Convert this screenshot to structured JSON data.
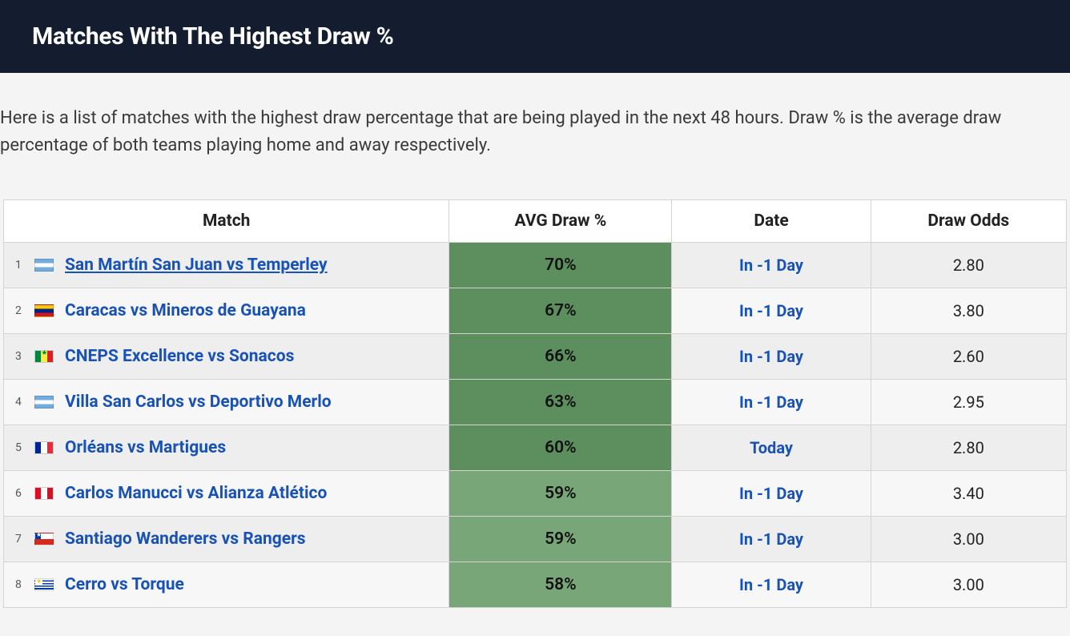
{
  "header": {
    "title": "Matches With The Highest Draw %"
  },
  "intro": "Here is a list of matches with the highest draw percentage that are being played in the next 48 hours. Draw % is the average draw percentage of both teams playing home and away respectively.",
  "table": {
    "columns": {
      "match": "Match",
      "avg_draw": "AVG Draw %",
      "date": "Date",
      "draw_odds": "Draw Odds"
    },
    "pct_color_strong": "#5d8e5d",
    "pct_color_mid": "#79a679",
    "pct_color_light": "#8db68d",
    "link_color": "#1852b4",
    "header_bg": "#131d2f",
    "rows": [
      {
        "n": "1",
        "flag": "ar",
        "match": "San Martín San Juan vs Temperley",
        "underline": true,
        "pct": "70%",
        "pct_bg": "#5d8e5d",
        "date": "In -1 Day",
        "odds": "2.80"
      },
      {
        "n": "2",
        "flag": "ve",
        "match": "Caracas vs Mineros de Guayana",
        "underline": false,
        "pct": "67%",
        "pct_bg": "#5d8e5d",
        "date": "In -1 Day",
        "odds": "3.80"
      },
      {
        "n": "3",
        "flag": "sn",
        "match": "CNEPS Excellence vs Sonacos",
        "underline": false,
        "pct": "66%",
        "pct_bg": "#5d8e5d",
        "date": "In -1 Day",
        "odds": "2.60"
      },
      {
        "n": "4",
        "flag": "ar",
        "match": "Villa San Carlos vs Deportivo Merlo",
        "underline": false,
        "pct": "63%",
        "pct_bg": "#5d8e5d",
        "date": "In -1 Day",
        "odds": "2.95"
      },
      {
        "n": "5",
        "flag": "fr",
        "match": "Orléans vs Martigues",
        "underline": false,
        "pct": "60%",
        "pct_bg": "#5d8e5d",
        "date": "Today",
        "odds": "2.80"
      },
      {
        "n": "6",
        "flag": "pe",
        "match": "Carlos Manucci vs Alianza Atlético",
        "underline": false,
        "pct": "59%",
        "pct_bg": "#79a679",
        "date": "In -1 Day",
        "odds": "3.40"
      },
      {
        "n": "7",
        "flag": "cl",
        "match": "Santiago Wanderers vs Rangers",
        "underline": false,
        "pct": "59%",
        "pct_bg": "#79a679",
        "date": "In -1 Day",
        "odds": "3.00"
      },
      {
        "n": "8",
        "flag": "uy",
        "match": "Cerro vs Torque",
        "underline": false,
        "pct": "58%",
        "pct_bg": "#79a679",
        "date": "In -1 Day",
        "odds": "3.00"
      }
    ]
  }
}
